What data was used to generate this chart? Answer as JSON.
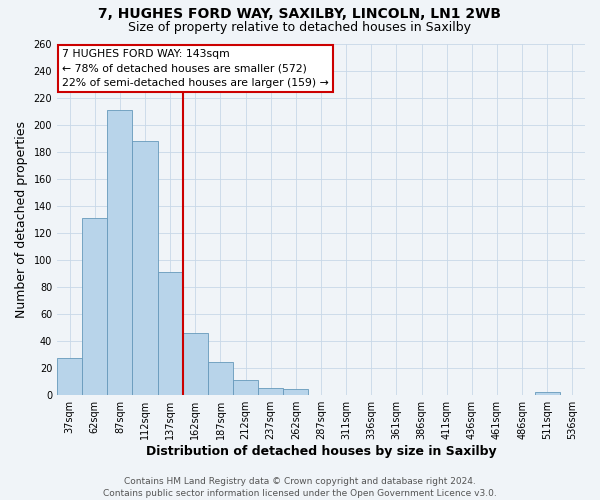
{
  "title": "7, HUGHES FORD WAY, SAXILBY, LINCOLN, LN1 2WB",
  "subtitle": "Size of property relative to detached houses in Saxilby",
  "xlabel": "Distribution of detached houses by size in Saxilby",
  "ylabel": "Number of detached properties",
  "bar_labels": [
    "37sqm",
    "62sqm",
    "87sqm",
    "112sqm",
    "137sqm",
    "162sqm",
    "187sqm",
    "212sqm",
    "237sqm",
    "262sqm",
    "287sqm",
    "311sqm",
    "336sqm",
    "361sqm",
    "386sqm",
    "411sqm",
    "436sqm",
    "461sqm",
    "486sqm",
    "511sqm",
    "536sqm"
  ],
  "bar_values": [
    27,
    131,
    211,
    188,
    91,
    46,
    24,
    11,
    5,
    4,
    0,
    0,
    0,
    0,
    0,
    0,
    0,
    0,
    0,
    2,
    0
  ],
  "bar_color": "#b8d4ea",
  "bar_edge_color": "#6699bb",
  "vline_color": "#cc0000",
  "vline_x_index": 4,
  "ylim": [
    0,
    260
  ],
  "yticks": [
    0,
    20,
    40,
    60,
    80,
    100,
    120,
    140,
    160,
    180,
    200,
    220,
    240,
    260
  ],
  "annotation_title": "7 HUGHES FORD WAY: 143sqm",
  "annotation_line1": "← 78% of detached houses are smaller (572)",
  "annotation_line2": "22% of semi-detached houses are larger (159) →",
  "annotation_box_color": "#ffffff",
  "annotation_box_edge": "#cc0000",
  "footer_line1": "Contains HM Land Registry data © Crown copyright and database right 2024.",
  "footer_line2": "Contains public sector information licensed under the Open Government Licence v3.0.",
  "background_color": "#f0f4f8",
  "grid_color": "#c8d8e8",
  "title_fontsize": 10,
  "subtitle_fontsize": 9,
  "tick_fontsize": 7,
  "label_fontsize": 9,
  "footer_fontsize": 6.5
}
